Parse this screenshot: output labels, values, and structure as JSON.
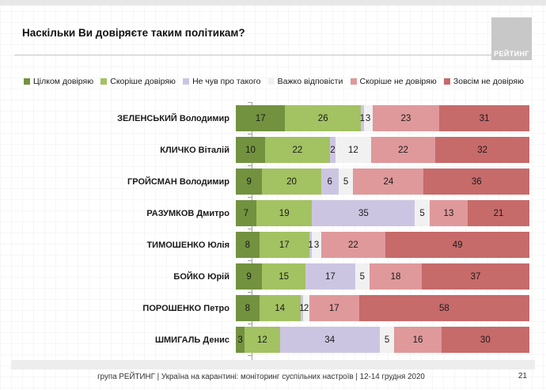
{
  "header": {
    "title": "Наскільки Ви довіряєте таким політикам?",
    "logo_text": "РЕЙТИНГ"
  },
  "chart_data": {
    "type": "bar",
    "orientation": "horizontal",
    "stacked": true,
    "unit": "percent",
    "xlim": [
      0,
      100
    ],
    "grid": false,
    "legend_position": "top",
    "value_labels": true,
    "title": "Наскільки Ви довіряєте таким політикам?",
    "categories": [
      "ЗЕЛЕНСЬКИЙ Володимир",
      "КЛИЧКО Віталій",
      "ГРОЙСМАН Володимир",
      "РАЗУМКОВ Дмитро",
      "ТИМОШЕНКО Юлія",
      "БОЙКО Юрій",
      "ПОРОШЕНКО Петро",
      "ШМИГАЛЬ Денис"
    ],
    "series": [
      {
        "name": "Цілком довіряю",
        "color": "#72923f",
        "values": [
          17,
          10,
          9,
          7,
          8,
          9,
          8,
          3
        ]
      },
      {
        "name": "Скоріше довіряю",
        "color": "#a3c262",
        "values": [
          26,
          22,
          20,
          19,
          17,
          15,
          14,
          12
        ]
      },
      {
        "name": "Не чув про такого",
        "color": "#ccc5e2",
        "values": [
          1,
          2,
          6,
          35,
          1,
          17,
          1,
          34
        ]
      },
      {
        "name": "Важко відповісти",
        "color": "#f1f1f1",
        "values": [
          3,
          12,
          5,
          5,
          3,
          5,
          2,
          5
        ]
      },
      {
        "name": "Скоріше не довіряю",
        "color": "#df999b",
        "values": [
          23,
          22,
          24,
          13,
          22,
          18,
          17,
          16
        ]
      },
      {
        "name": "Зовсім не довіряю",
        "color": "#c76a6a",
        "values": [
          31,
          32,
          36,
          21,
          49,
          37,
          58,
          30
        ]
      }
    ]
  },
  "footer": {
    "source": "група РЕЙТИНГ | Україна на карантині: моніторинг суспільних настроїв | 12-14 грудня 2020",
    "page": "21"
  }
}
